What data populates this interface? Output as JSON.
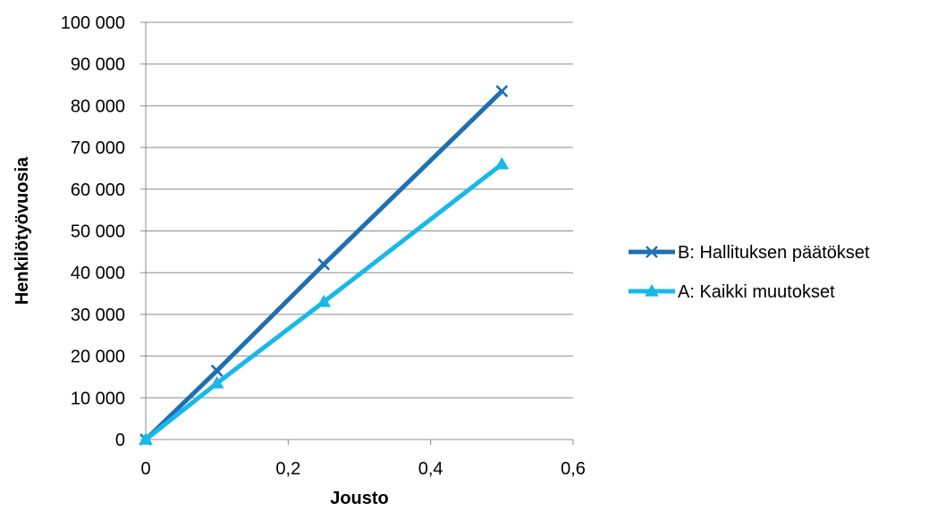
{
  "chart_data": {
    "type": "line",
    "title": "",
    "xlabel": "Jousto",
    "ylabel": "Henkilötyövuosia",
    "xlim": [
      0,
      0.6
    ],
    "ylim": [
      0,
      100000
    ],
    "x_ticks": [
      "0",
      "0,2",
      "0,4",
      "0,6"
    ],
    "y_ticks": [
      "0",
      "10 000",
      "20 000",
      "30 000",
      "40 000",
      "50 000",
      "60 000",
      "70 000",
      "80 000",
      "90 000",
      "100 000"
    ],
    "grid": "horizontal",
    "legend_position": "right",
    "series": [
      {
        "name": "B: Hallituksen päätökset",
        "color": "#1f6fb2",
        "marker": "x",
        "points": [
          [
            0,
            0
          ],
          [
            0.1,
            16500
          ],
          [
            0.25,
            42000
          ],
          [
            0.5,
            83500
          ]
        ]
      },
      {
        "name": "A: Kaikki muutokset",
        "color": "#19b8e8",
        "marker": "triangle",
        "points": [
          [
            0,
            0
          ],
          [
            0.1,
            13500
          ],
          [
            0.25,
            33000
          ],
          [
            0.5,
            66000
          ]
        ]
      }
    ]
  }
}
